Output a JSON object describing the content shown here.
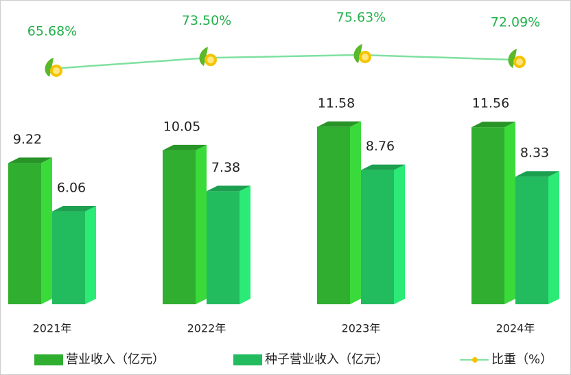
{
  "chart_data": {
    "type": "bar3d-line",
    "categories": [
      "2021年",
      "2022年",
      "2023年",
      "2024年"
    ],
    "series": [
      {
        "name": "营业收入（亿元）",
        "color": "#2fae2f",
        "values": [
          9.22,
          10.05,
          11.58,
          11.56
        ]
      },
      {
        "name": "种子营业收入（亿元）",
        "color": "#22bb5e",
        "values": [
          6.06,
          7.38,
          8.76,
          8.33
        ]
      },
      {
        "name": "比重（%）",
        "color": "#7fe0a0",
        "type": "line",
        "axis": "y2",
        "values": [
          65.68,
          73.5,
          75.63,
          72.09
        ],
        "value_labels": [
          "65.68%",
          "73.50%",
          "75.63%",
          "72.09%"
        ]
      }
    ],
    "ylim": [
      0,
      20
    ],
    "y2lim": [
      0,
      100
    ]
  }
}
